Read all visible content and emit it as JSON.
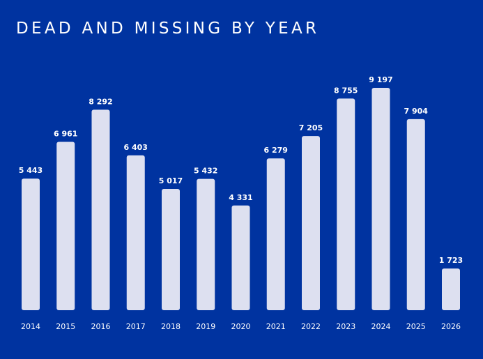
{
  "chart_data": {
    "type": "bar",
    "title": "DEAD AND MISSING BY YEAR",
    "xlabel": "",
    "ylabel": "",
    "categories": [
      "2014",
      "2015",
      "2016",
      "2017",
      "2018",
      "2019",
      "2020",
      "2021",
      "2022",
      "2023",
      "2024",
      "2025",
      "2026"
    ],
    "values": [
      5443,
      6961,
      8292,
      6403,
      5017,
      5432,
      4331,
      6279,
      7205,
      8755,
      9197,
      7904,
      1723
    ],
    "data_labels": [
      "5 443",
      "6 961",
      "8 292",
      "6 403",
      "5 017",
      "5 432",
      "4 331",
      "6 279",
      "7 205",
      "8 755",
      "9 197",
      "7 904",
      "1 723"
    ],
    "ylim": [
      0,
      9197
    ],
    "grid": false,
    "colors": {
      "background": "#0033a0",
      "bar": "#dde0f0",
      "text": "#ffffff"
    }
  }
}
